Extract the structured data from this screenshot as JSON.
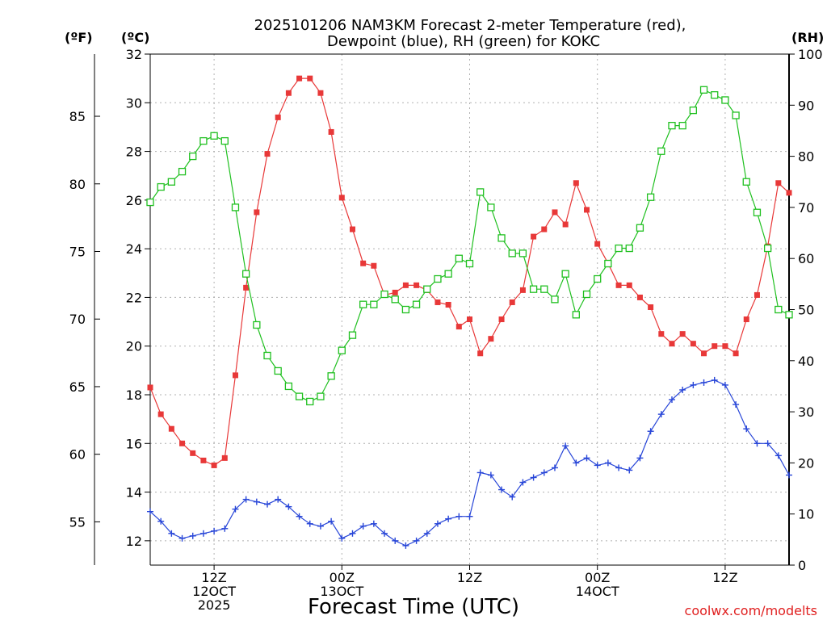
{
  "chart_data": {
    "type": "line",
    "title": [
      "2025101206 NAM3KM Forecast 2-meter Temperature (red),",
      "Dewpoint (blue), RH (green) for KOKC"
    ],
    "xlabel": "Forecast Time (UTC)",
    "credit": "coolwx.com/modelts",
    "x_hours": [
      0,
      1,
      2,
      3,
      4,
      5,
      6,
      7,
      8,
      9,
      10,
      11,
      12,
      13,
      14,
      15,
      16,
      17,
      18,
      19,
      20,
      21,
      22,
      23,
      24,
      25,
      26,
      27,
      28,
      29,
      30,
      31,
      32,
      33,
      34,
      35,
      36,
      37,
      38,
      39,
      40,
      41,
      42,
      43,
      44,
      45,
      46,
      47,
      48,
      49,
      50,
      51,
      52,
      53,
      54,
      55,
      56,
      57,
      58,
      59,
      60
    ],
    "xlim": [
      0,
      60
    ],
    "x_ticks": [
      {
        "hour": 6,
        "lines": [
          "12Z",
          "12OCT",
          "2025"
        ]
      },
      {
        "hour": 18,
        "lines": [
          "00Z",
          "13OCT"
        ]
      },
      {
        "hour": 30,
        "lines": [
          "12Z"
        ]
      },
      {
        "hour": 42,
        "lines": [
          "00Z",
          "14OCT"
        ]
      },
      {
        "hour": 54,
        "lines": [
          "12Z"
        ]
      }
    ],
    "left_axis_c": {
      "label": "(ºC)",
      "min": 11,
      "max": 32,
      "ticks": [
        12,
        14,
        16,
        18,
        20,
        22,
        24,
        26,
        28,
        30,
        32
      ]
    },
    "left_axis_f": {
      "label": "(ºF)",
      "ticks": [
        55,
        60,
        65,
        70,
        75,
        80,
        85
      ]
    },
    "right_axis_rh": {
      "label": "(RH)",
      "min": 0,
      "max": 100,
      "ticks": [
        0,
        10,
        20,
        30,
        40,
        50,
        60,
        70,
        80,
        90,
        100
      ]
    },
    "series": [
      {
        "name": "Temperature",
        "unit": "C",
        "color": "#e83838",
        "marker": "filled-square",
        "values": [
          18.3,
          17.2,
          16.6,
          16.0,
          15.6,
          15.3,
          15.1,
          15.4,
          18.8,
          22.4,
          25.5,
          27.9,
          29.4,
          30.4,
          31.0,
          31.0,
          30.4,
          28.8,
          26.1,
          24.8,
          23.4,
          23.3,
          22.1,
          22.2,
          22.5,
          22.5,
          22.3,
          21.8,
          21.7,
          20.8,
          21.1,
          19.7,
          20.3,
          21.1,
          21.8,
          22.3,
          24.5,
          24.8,
          25.5,
          25.0,
          26.7,
          25.6,
          24.2,
          23.4,
          22.5,
          22.5,
          22.0,
          21.6,
          20.5,
          20.1,
          20.5,
          20.1,
          19.7,
          20.0,
          20.0,
          19.7,
          21.1,
          22.1,
          24.1,
          26.7,
          26.3
        ]
      },
      {
        "name": "Dewpoint",
        "unit": "C",
        "color": "#2846d8",
        "marker": "plus",
        "values": [
          13.2,
          12.8,
          12.3,
          12.1,
          12.2,
          12.3,
          12.4,
          12.5,
          13.3,
          13.7,
          13.6,
          13.5,
          13.7,
          13.4,
          13.0,
          12.7,
          12.6,
          12.8,
          12.1,
          12.3,
          12.6,
          12.7,
          12.3,
          12.0,
          11.8,
          12.0,
          12.3,
          12.7,
          12.9,
          13.0,
          13.0,
          14.8,
          14.7,
          14.1,
          13.8,
          14.4,
          14.6,
          14.8,
          15.0,
          15.9,
          15.2,
          15.4,
          15.1,
          15.2,
          15.0,
          14.9,
          15.4,
          16.5,
          17.2,
          17.8,
          18.2,
          18.4,
          18.5,
          18.6,
          18.4,
          17.6,
          16.6,
          16.0,
          16.0,
          15.5,
          14.7
        ]
      },
      {
        "name": "RH",
        "unit": "%",
        "color": "#20c020",
        "marker": "open-square",
        "values": [
          71,
          74,
          75,
          77,
          80,
          83,
          84,
          83,
          70,
          57,
          47,
          41,
          38,
          35,
          33,
          32,
          33,
          37,
          42,
          45,
          51,
          51,
          53,
          52,
          50,
          51,
          54,
          56,
          57,
          60,
          59,
          73,
          70,
          64,
          61,
          61,
          54,
          54,
          52,
          57,
          49,
          53,
          56,
          59,
          62,
          62,
          66,
          72,
          81,
          86,
          86,
          89,
          93,
          92,
          91,
          88,
          75,
          69,
          62,
          50,
          49
        ]
      }
    ]
  }
}
